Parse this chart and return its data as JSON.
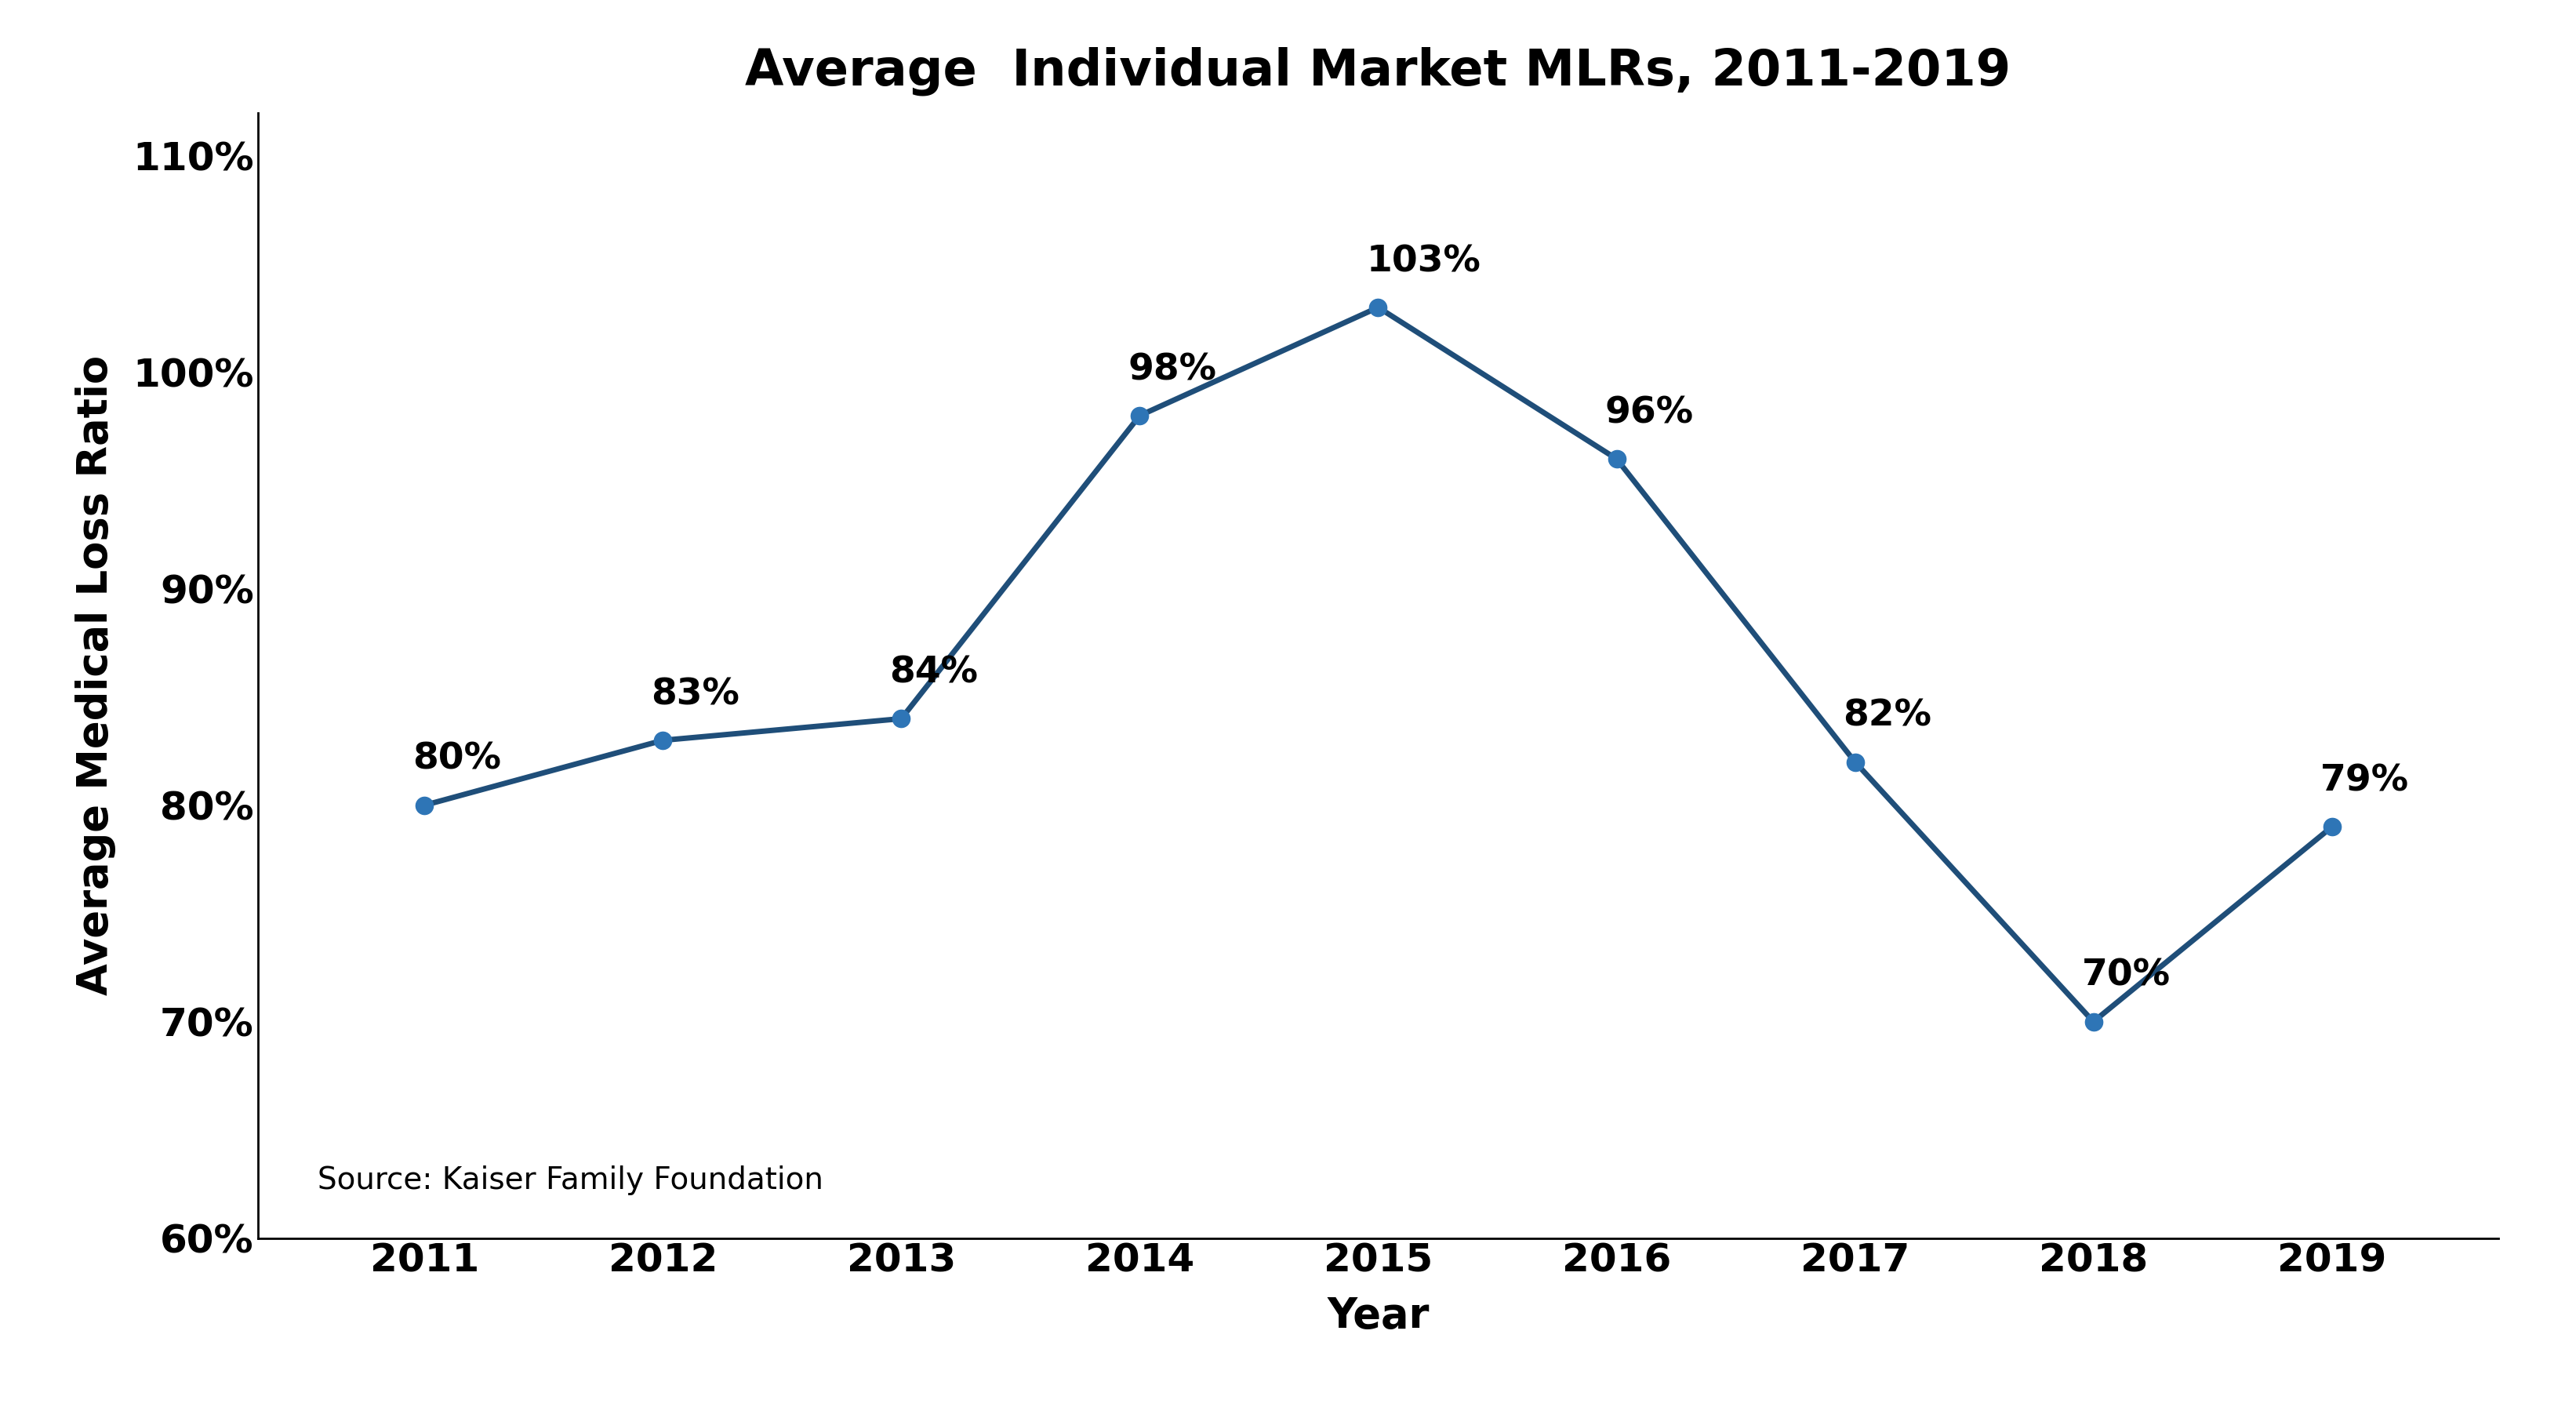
{
  "title": "Average  Individual Market MLRs, 2011-2019",
  "xlabel": "Year",
  "ylabel": "Average Medical Loss Ratio",
  "years": [
    2011,
    2012,
    2013,
    2014,
    2015,
    2016,
    2017,
    2018,
    2019
  ],
  "values": [
    80,
    83,
    84,
    98,
    103,
    96,
    82,
    70,
    79
  ],
  "labels": [
    "80%",
    "83%",
    "84%",
    "98%",
    "103%",
    "96%",
    "82%",
    "70%",
    "79%"
  ],
  "ylim": [
    60,
    112
  ],
  "yticks": [
    60,
    70,
    80,
    90,
    100,
    110
  ],
  "ytick_labels": [
    "60%",
    "70%",
    "80%",
    "90%",
    "100%",
    "110%"
  ],
  "line_color": "#1F4E79",
  "marker_color": "#2E75B6",
  "line_width": 5.0,
  "marker_size": 16,
  "title_fontsize": 46,
  "axis_label_fontsize": 38,
  "tick_fontsize": 36,
  "annotation_fontsize": 34,
  "source_text": "Source: Kaiser Family Foundation",
  "source_fontsize": 28,
  "background_color": "#ffffff",
  "annotation_x_offsets": [
    -0.05,
    -0.05,
    -0.05,
    -0.05,
    -0.05,
    -0.05,
    -0.05,
    -0.05,
    -0.05
  ],
  "annotation_y_offsets": [
    1.3,
    1.3,
    1.3,
    1.3,
    1.3,
    1.3,
    1.3,
    1.3,
    1.3
  ]
}
